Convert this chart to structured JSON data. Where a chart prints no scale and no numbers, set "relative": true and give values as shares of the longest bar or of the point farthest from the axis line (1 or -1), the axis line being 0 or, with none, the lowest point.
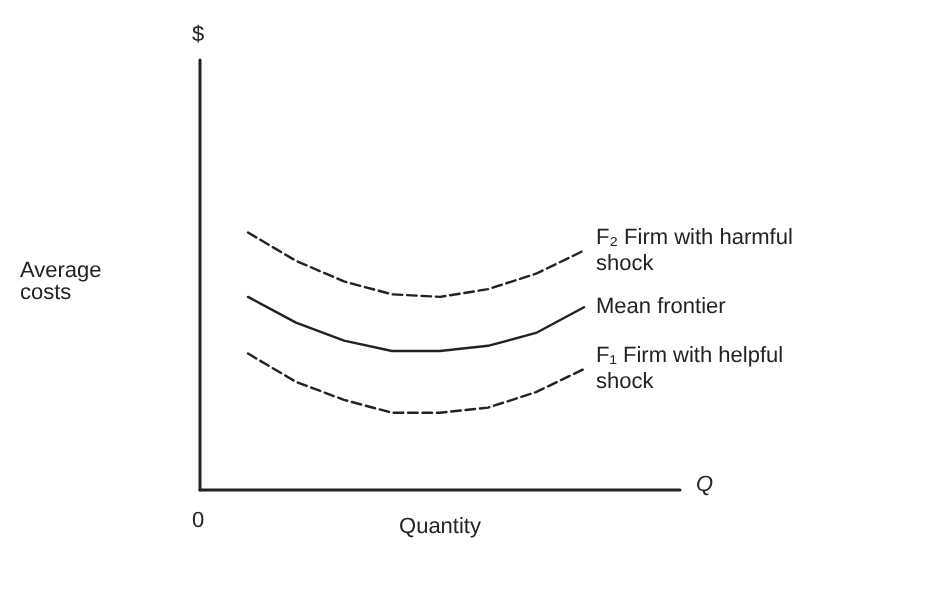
{
  "chart_data": {
    "type": "line",
    "relative": true,
    "xlabel": "Quantity",
    "ylabel": "Average costs",
    "annotations": [
      "$",
      "Q",
      "0"
    ],
    "categories": [
      null,
      null,
      null,
      null,
      null,
      null,
      null,
      null,
      null,
      null,
      null
    ],
    "series": [
      {
        "name": "F₂ Firm with harmful shock",
        "color": "#222222",
        "line_style": "dashed",
        "values": [
          null,
          1,
          0.89,
          0.81,
          0.76,
          0.75,
          0.78,
          0.84,
          0.93,
          null,
          null
        ]
      },
      {
        "name": "Mean frontier",
        "color": "#222222",
        "line_style": "solid",
        "values": [
          null,
          0.75,
          0.65,
          0.58,
          0.54,
          0.54,
          0.56,
          0.61,
          0.71,
          null,
          null
        ]
      },
      {
        "name": "F₁ Firm with helpful shock",
        "color": "#222222",
        "line_style": "dashed",
        "values": [
          null,
          0.53,
          0.42,
          0.35,
          0.3,
          0.3,
          0.32,
          0.38,
          0.47,
          null,
          null
        ]
      }
    ],
    "legend": false,
    "grid": false,
    "marker": "none"
  }
}
